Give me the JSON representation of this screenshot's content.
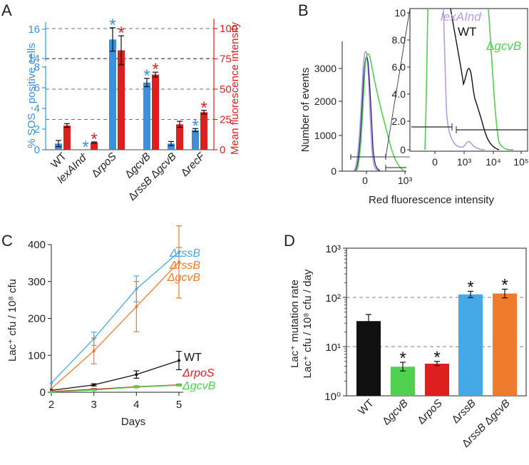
{
  "colors": {
    "blue": "#3d8fdd",
    "red": "#dd1f1f",
    "orange": "#ee7a2b",
    "green": "#4fd14f",
    "black": "#111111",
    "lavender": "#b79be0",
    "lightblue": "#45a9e8"
  },
  "chart_data": [
    {
      "panel": "A",
      "type": "bar",
      "ylabel_left": "% SOS - positive cells",
      "ylabel_right": "Mean fluorescence intensity",
      "categories": [
        "WT",
        "lexAInd",
        "ΔrpoS",
        "ΔgcvB",
        "ΔrssB ΔgcvB",
        "ΔrecF"
      ],
      "category_superscripts": [
        "",
        "-",
        "",
        "",
        "",
        ""
      ],
      "left_ticks": [
        "0",
        "2",
        "4",
        "6",
        "8",
        "14",
        "16"
      ],
      "right_ticks": [
        "0",
        "25",
        "50",
        "75",
        "100"
      ],
      "left_break": [
        8,
        14
      ],
      "ylim_left": [
        0,
        16.5
      ],
      "ylim_right": [
        0,
        110
      ],
      "series": [
        {
          "name": "% SOS-positive cells",
          "axis": "left",
          "color": "blue",
          "values": [
            0.6,
            0,
            15.3,
            6.5,
            0.6,
            1.9
          ],
          "errors": [
            0.3,
            0,
            0.8,
            0.4,
            0.2,
            0.15
          ],
          "significant": [
            false,
            true,
            true,
            true,
            false,
            true
          ]
        },
        {
          "name": "Mean fluorescence intensity",
          "axis": "right",
          "color": "red",
          "values": [
            20,
            6,
            82,
            62,
            21,
            31
          ],
          "errors": [
            1.5,
            0.5,
            12,
            2,
            2.5,
            1.5
          ],
          "significant": [
            false,
            true,
            true,
            true,
            false,
            true
          ]
        }
      ],
      "significance_mark": "*"
    },
    {
      "panel": "B",
      "type": "histogram",
      "xlabel": "Red fluorescence intensity",
      "ylabel": "Number of events",
      "y_ticks": [
        "0",
        "1000",
        "2000",
        "3000"
      ],
      "x_ticks": [
        "0",
        "10³"
      ],
      "inset_y_ticks": [
        "0",
        "2.0",
        "4.0",
        "6.0",
        "8.0",
        "10"
      ],
      "inset_x_ticks": [
        "0",
        "10³",
        "10⁴",
        "10⁵"
      ],
      "legend": [
        {
          "name": "lexAInd",
          "sup": "-",
          "color": "lavender"
        },
        {
          "name": "WT",
          "sup": "",
          "color": "black"
        },
        {
          "name": "ΔgcvB",
          "sup": "",
          "color": "green"
        }
      ]
    },
    {
      "panel": "C",
      "type": "line",
      "xlabel": "Days",
      "ylabel": "Lac⁺ cfu / 10⁸ cfu",
      "x": [
        2,
        3,
        4,
        5
      ],
      "xlim": [
        2,
        5
      ],
      "ylim": [
        0,
        400
      ],
      "x_ticks": [
        "2",
        "3",
        "4",
        "5"
      ],
      "y_ticks": [
        "0",
        "100",
        "200",
        "300",
        "400"
      ],
      "series": [
        {
          "name": "ΔrssB",
          "color": "lightblue",
          "values": [
            25,
            145,
            280,
            380
          ],
          "errors": [
            0,
            18,
            35,
            12
          ]
        },
        {
          "name": "ΔrssB ΔgcvB",
          "color": "orange",
          "values": [
            10,
            112,
            232,
            353
          ],
          "errors": [
            0,
            35,
            68,
            98
          ]
        },
        {
          "name": "WT",
          "color": "black",
          "values": [
            5,
            20,
            48,
            86
          ],
          "errors": [
            0,
            3,
            10,
            25
          ]
        },
        {
          "name": "ΔrpoS",
          "color": "red",
          "values": [
            2,
            8,
            15,
            20
          ],
          "errors": [
            0,
            2,
            2,
            2
          ]
        },
        {
          "name": "ΔgcvB",
          "color": "green",
          "values": [
            1,
            6,
            14,
            19
          ],
          "errors": [
            0,
            1,
            2,
            2
          ]
        }
      ],
      "labels": {
        "rssB_1": "ΔrssB",
        "rssB_2": "ΔrssB",
        "gcvB": "ΔgcvB",
        "wt": "WT",
        "rpoS": "ΔrpoS",
        "gcvB_green": "ΔgcvB"
      }
    },
    {
      "panel": "D",
      "type": "bar",
      "yscale": "log",
      "ylabel_line1": "Lac⁺ mutation rate",
      "ylabel_line2": "Lac⁺ cfu / 10⁸ cfu / day",
      "categories": [
        "WT",
        "ΔgcvB",
        "ΔrpoS",
        "ΔrssB",
        "ΔrssB ΔgcvB"
      ],
      "values": [
        33,
        3.9,
        4.5,
        115,
        120
      ],
      "error_upper": [
        45,
        4.8,
        5.0,
        133,
        147
      ],
      "error_lower": [
        24,
        3.2,
        4.1,
        99,
        98
      ],
      "colors": [
        "black",
        "green",
        "red",
        "lightblue",
        "orange"
      ],
      "significant": [
        false,
        true,
        true,
        true,
        true
      ],
      "y_ticks": [
        "10⁰",
        "10¹",
        "10²",
        "10³"
      ],
      "ylim": [
        1,
        1000
      ]
    }
  ],
  "panel_labels": {
    "a": "A",
    "b": "B",
    "c": "C",
    "d": "D"
  },
  "a_sup": "-"
}
